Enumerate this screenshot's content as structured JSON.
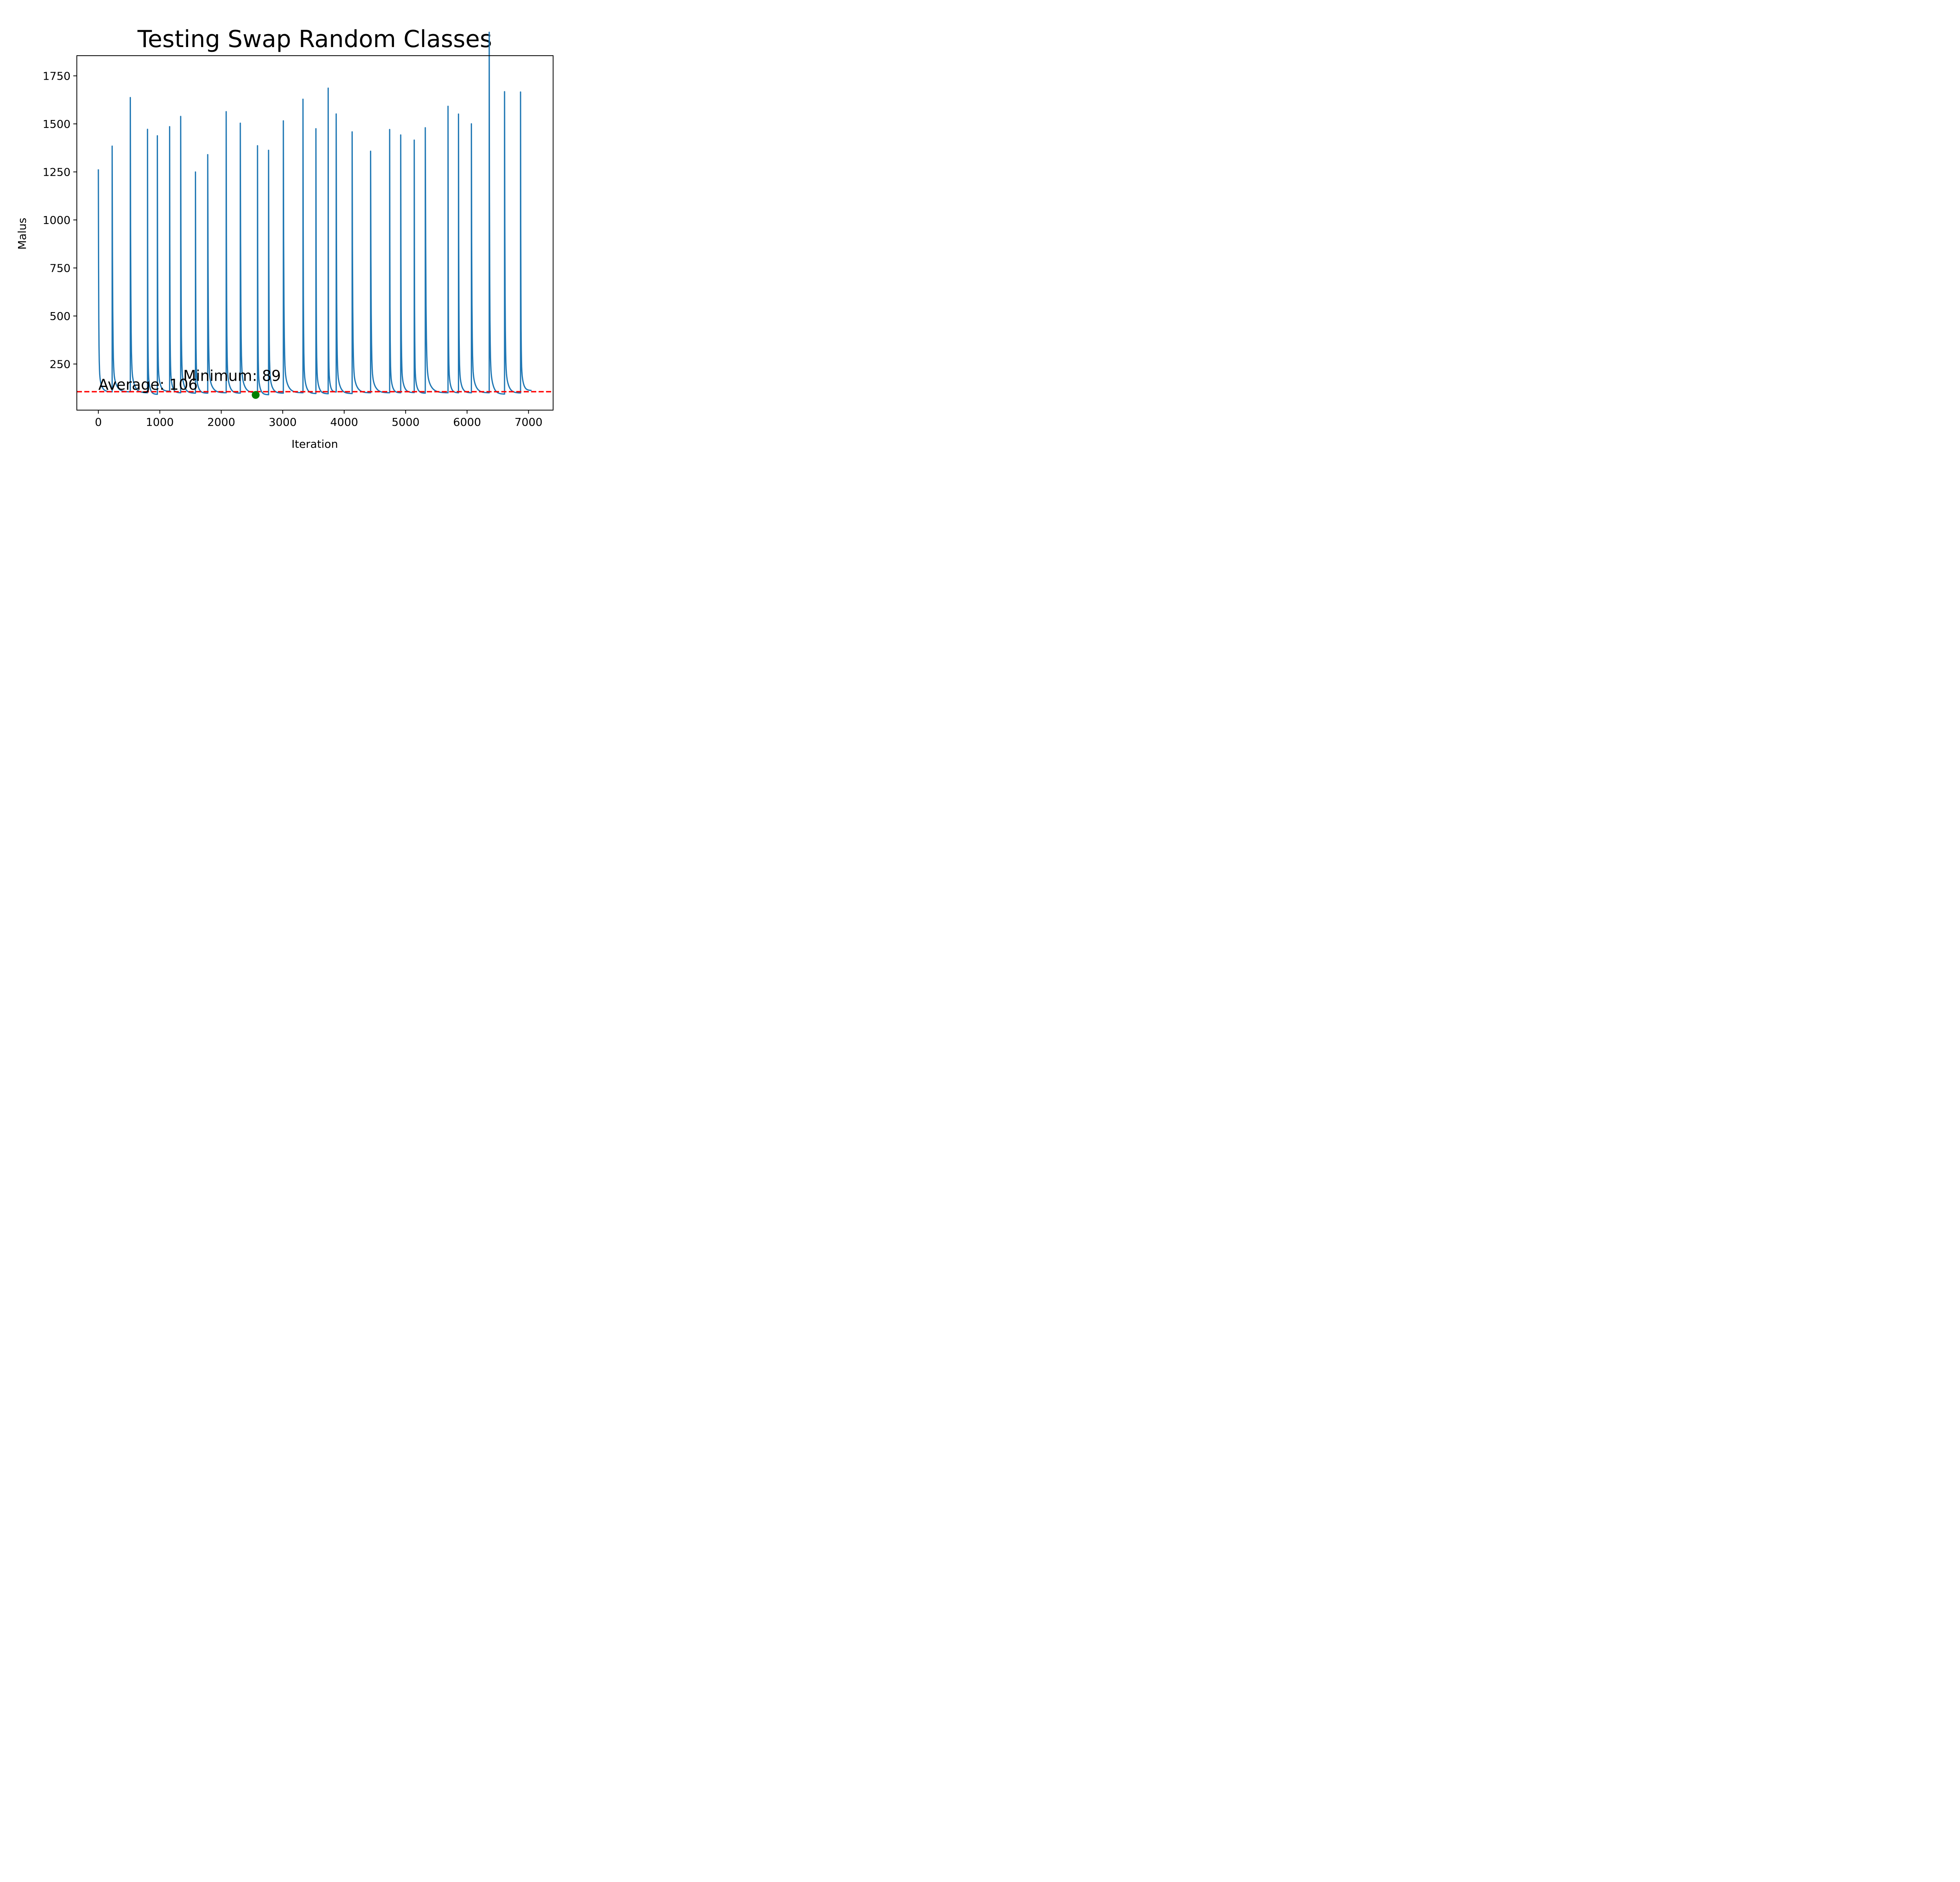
{
  "chart_data": {
    "type": "line",
    "title": "Testing Swap Random Classes",
    "xlabel": "Iteration",
    "ylabel": "Malus",
    "xlim": [
      -350,
      7400
    ],
    "ylim": [
      10,
      1855
    ],
    "xticks": [
      0,
      1000,
      2000,
      3000,
      4000,
      5000,
      6000,
      7000
    ],
    "yticks": [
      250,
      500,
      750,
      1000,
      1250,
      1500,
      1750
    ],
    "grid": false,
    "series": [
      {
        "color": "#1f77b4",
        "restarts": [
          {
            "x": 0,
            "peak": 1130
          },
          {
            "x": 225,
            "peak": 1237
          },
          {
            "x": 520,
            "peak": 1460
          },
          {
            "x": 800,
            "peak": 1313
          },
          {
            "x": 960,
            "peak": 1285
          },
          {
            "x": 1160,
            "peak": 1326
          },
          {
            "x": 1340,
            "peak": 1373
          },
          {
            "x": 1580,
            "peak": 1117
          },
          {
            "x": 1780,
            "peak": 1197
          },
          {
            "x": 2080,
            "peak": 1395
          },
          {
            "x": 2310,
            "peak": 1342
          },
          {
            "x": 2590,
            "peak": 1237
          },
          {
            "x": 2770,
            "peak": 1217
          },
          {
            "x": 3010,
            "peak": 1353
          },
          {
            "x": 3330,
            "peak": 1452
          },
          {
            "x": 3540,
            "peak": 1316
          },
          {
            "x": 3740,
            "peak": 1504
          },
          {
            "x": 3870,
            "peak": 1384
          },
          {
            "x": 4130,
            "peak": 1302
          },
          {
            "x": 4430,
            "peak": 1213
          },
          {
            "x": 4740,
            "peak": 1313
          },
          {
            "x": 4920,
            "peak": 1288
          },
          {
            "x": 5140,
            "peak": 1264
          },
          {
            "x": 5320,
            "peak": 1321
          },
          {
            "x": 5690,
            "peak": 1420
          },
          {
            "x": 5860,
            "peak": 1384
          },
          {
            "x": 6070,
            "peak": 1339
          },
          {
            "x": 6360,
            "peak": 1760
          },
          {
            "x": 6610,
            "peak": 1487
          },
          {
            "x": 6870,
            "peak": 1487
          }
        ],
        "end_x": 7050,
        "floor_values": [
          105,
          105,
          100,
          92,
          108,
          100,
          98,
          98,
          100,
          98,
          100,
          90,
          98,
          100,
          96,
          95,
          104,
          96,
          100,
          100,
          100,
          101,
          98,
          100,
          100,
          100,
          100,
          93,
          99,
          112
        ]
      }
    ],
    "average": {
      "value": 106,
      "label": "Average: 106",
      "color": "#ff0000"
    },
    "minimum": {
      "x": 2560,
      "value": 89,
      "label": "Minimum: 89",
      "color": "#008000"
    }
  }
}
